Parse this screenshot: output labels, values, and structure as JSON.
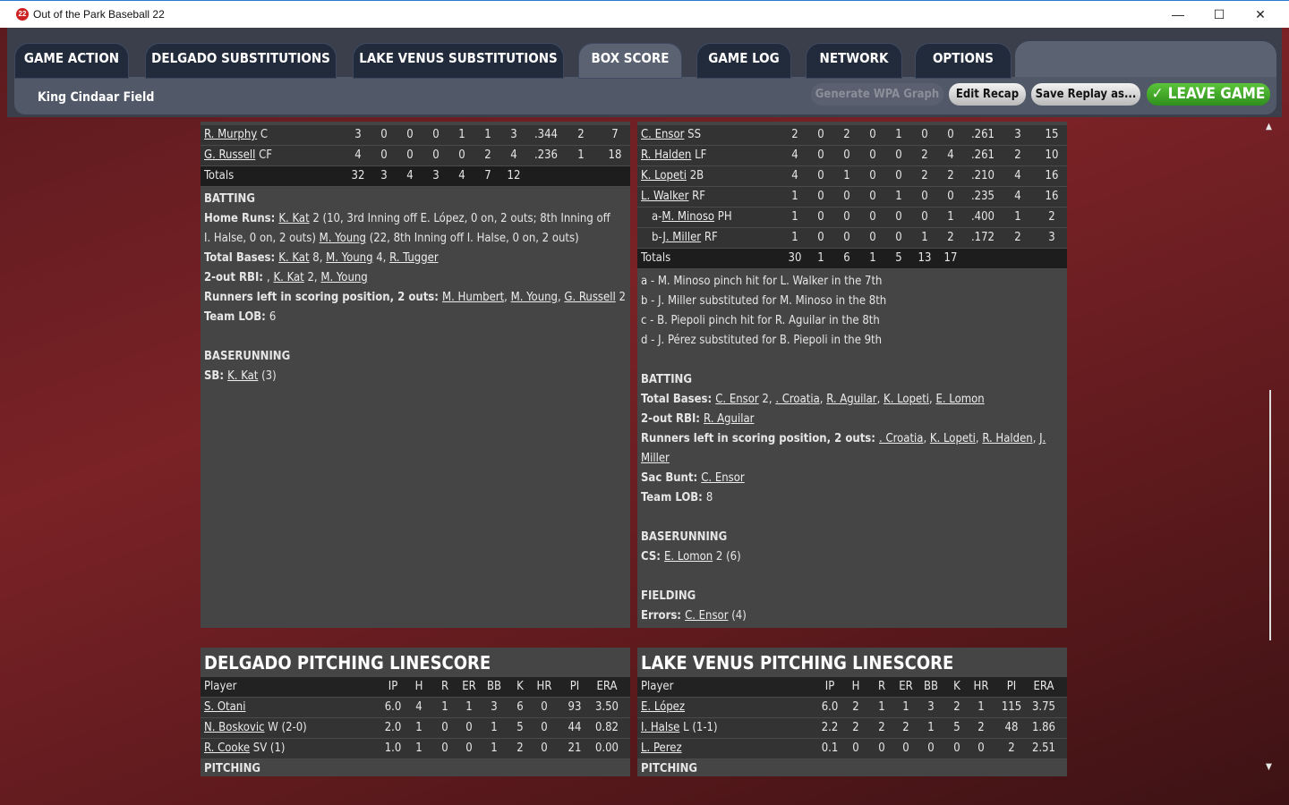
{
  "window": {
    "title": "Out of the Park Baseball 22",
    "logo": "22",
    "controls": [
      "minimize-icon",
      "maximize-icon",
      "close-icon"
    ]
  },
  "tabs": [
    {
      "label": "GAME ACTION"
    },
    {
      "label": "DELGADO SUBSTITUTIONS"
    },
    {
      "label": "LAKE VENUS SUBSTITUTIONS"
    },
    {
      "label": "BOX SCORE",
      "active": true
    },
    {
      "label": "GAME LOG"
    },
    {
      "label": "NETWORK"
    },
    {
      "label": "OPTIONS"
    }
  ],
  "field": "King Cindaar Field",
  "buttons": {
    "wpa": "Generate WPA Graph",
    "recap": "Edit Recap",
    "replay": "Save Replay as...",
    "leave": "LEAVE GAME",
    "leave_color": "#3fa82a"
  },
  "delgado_batting": {
    "rows": [
      {
        "name": "R. Murphy",
        "pos": "C",
        "vals": [
          "3",
          "0",
          "0",
          "0",
          "1",
          "1",
          "3",
          ".344",
          "2",
          "7"
        ]
      },
      {
        "name": "G. Russell",
        "pos": "CF",
        "vals": [
          "4",
          "0",
          "0",
          "0",
          "0",
          "2",
          "4",
          ".236",
          "1",
          "18"
        ]
      }
    ],
    "totals": {
      "label": "Totals",
      "vals": [
        "32",
        "3",
        "4",
        "3",
        "4",
        "7",
        "12"
      ]
    },
    "notes": [
      [
        {
          "t": "BATTING",
          "b": 1
        }
      ],
      [
        {
          "t": "Home Runs: ",
          "b": 1
        },
        {
          "t": "K. Kat",
          "l": 1
        },
        {
          "t": " 2 (10, 3rd Inning off E. López, 0 on, 2 outs; 8th Inning off"
        }
      ],
      [
        {
          "t": "I. Halse, 0 on, 2 outs) "
        },
        {
          "t": "M. Young",
          "l": 1
        },
        {
          "t": " (22, 8th Inning off I. Halse, 0 on, 2 outs)"
        }
      ],
      [
        {
          "t": "Total Bases: ",
          "b": 1
        },
        {
          "t": "K. Kat",
          "l": 1
        },
        {
          "t": " 8, "
        },
        {
          "t": "M. Young",
          "l": 1
        },
        {
          "t": " 4, "
        },
        {
          "t": "R. Tugger",
          "l": 1
        }
      ],
      [
        {
          "t": "2-out RBI: ",
          "b": 1
        },
        {
          "t": ", "
        },
        {
          "t": "K. Kat",
          "l": 1
        },
        {
          "t": " 2, "
        },
        {
          "t": "M. Young",
          "l": 1
        }
      ],
      [
        {
          "t": "Runners left in scoring position, 2 outs: ",
          "b": 1
        },
        {
          "t": "M. Humbert",
          "l": 1
        },
        {
          "t": ", "
        },
        {
          "t": "M. Young",
          "l": 1
        },
        {
          "t": ", "
        },
        {
          "t": "G. Russell",
          "l": 1
        },
        {
          "t": " 2"
        }
      ],
      [
        {
          "t": "Team LOB: ",
          "b": 1
        },
        {
          "t": "6"
        }
      ],
      [
        {
          "t": " "
        }
      ],
      [
        {
          "t": "BASERUNNING",
          "b": 1
        }
      ],
      [
        {
          "t": "SB: ",
          "b": 1
        },
        {
          "t": "K. Kat",
          "l": 1
        },
        {
          "t": " (3)"
        }
      ]
    ]
  },
  "lakevenus_batting": {
    "rows": [
      {
        "name": "C. Ensor",
        "pos": "SS",
        "vals": [
          "2",
          "0",
          "2",
          "0",
          "1",
          "0",
          "0",
          ".261",
          "3",
          "15"
        ]
      },
      {
        "name": "R. Halden",
        "pos": "LF",
        "vals": [
          "4",
          "0",
          "0",
          "0",
          "0",
          "2",
          "4",
          ".261",
          "2",
          "10"
        ]
      },
      {
        "name": "K. Lopeti",
        "pos": "2B",
        "vals": [
          "4",
          "0",
          "1",
          "0",
          "0",
          "2",
          "2",
          ".210",
          "4",
          "16"
        ]
      },
      {
        "name": "L. Walker",
        "pos": "RF",
        "vals": [
          "1",
          "0",
          "0",
          "0",
          "1",
          "0",
          "0",
          ".235",
          "4",
          "16"
        ]
      },
      {
        "prefix": "a-",
        "name": "M. Minoso",
        "pos": "PH",
        "vals": [
          "1",
          "0",
          "0",
          "0",
          "0",
          "0",
          "1",
          ".400",
          "1",
          "2"
        ]
      },
      {
        "prefix": "b-",
        "name": "J. Miller",
        "pos": "RF",
        "vals": [
          "1",
          "0",
          "0",
          "0",
          "0",
          "1",
          "2",
          ".172",
          "2",
          "3"
        ]
      }
    ],
    "totals": {
      "label": "Totals",
      "vals": [
        "30",
        "1",
        "6",
        "1",
        "5",
        "13",
        "17"
      ]
    },
    "notes": [
      [
        {
          "t": "a - M. Minoso pinch hit for L. Walker in the 7th"
        }
      ],
      [
        {
          "t": "b - J. Miller substituted for M. Minoso in the 8th"
        }
      ],
      [
        {
          "t": "c - B. Piepoli pinch hit for R. Aguilar in the 8th"
        }
      ],
      [
        {
          "t": "d - J. Pérez substituted for B. Piepoli in the 9th"
        }
      ],
      [
        {
          "t": " "
        }
      ],
      [
        {
          "t": "BATTING",
          "b": 1
        }
      ],
      [
        {
          "t": "Total Bases: ",
          "b": 1
        },
        {
          "t": "C. Ensor",
          "l": 1
        },
        {
          "t": " 2, "
        },
        {
          "t": ". Croatia",
          "l": 1
        },
        {
          "t": ", "
        },
        {
          "t": "R. Aguilar",
          "l": 1
        },
        {
          "t": ", "
        },
        {
          "t": "K. Lopeti",
          "l": 1
        },
        {
          "t": ", "
        },
        {
          "t": "E. Lomon",
          "l": 1
        }
      ],
      [
        {
          "t": "2-out RBI: ",
          "b": 1
        },
        {
          "t": "R. Aguilar",
          "l": 1
        }
      ],
      [
        {
          "t": "Runners left in scoring position, 2 outs: ",
          "b": 1
        },
        {
          "t": ". Croatia",
          "l": 1
        },
        {
          "t": ", "
        },
        {
          "t": "K. Lopeti",
          "l": 1
        },
        {
          "t": ", "
        },
        {
          "t": "R. Halden",
          "l": 1
        },
        {
          "t": ", "
        },
        {
          "t": "J.",
          "l": 1
        }
      ],
      [
        {
          "t": "Miller",
          "l": 1
        }
      ],
      [
        {
          "t": "Sac Bunt: ",
          "b": 1
        },
        {
          "t": "C. Ensor",
          "l": 1
        }
      ],
      [
        {
          "t": "Team LOB: ",
          "b": 1
        },
        {
          "t": "8"
        }
      ],
      [
        {
          "t": " "
        }
      ],
      [
        {
          "t": "BASERUNNING",
          "b": 1
        }
      ],
      [
        {
          "t": "CS: ",
          "b": 1
        },
        {
          "t": "E. Lomon",
          "l": 1
        },
        {
          "t": " 2 (6)"
        }
      ],
      [
        {
          "t": " "
        }
      ],
      [
        {
          "t": "FIELDING",
          "b": 1
        }
      ],
      [
        {
          "t": "Errors: ",
          "b": 1
        },
        {
          "t": "C. Ensor",
          "l": 1
        },
        {
          "t": " (4)"
        }
      ]
    ]
  },
  "pitching": [
    {
      "title": "DELGADO PITCHING LINESCORE",
      "headers": [
        "Player",
        "IP",
        "H",
        "R",
        "ER",
        "BB",
        "K",
        "HR",
        "PI",
        "ERA"
      ],
      "rows": [
        {
          "name": "S. Otani",
          "note": "",
          "vals": [
            "6.0",
            "4",
            "1",
            "1",
            "3",
            "6",
            "0",
            "93",
            "3.50"
          ]
        },
        {
          "name": "N. Boskovic",
          "note": " W (2-0)",
          "vals": [
            "2.0",
            "1",
            "0",
            "0",
            "1",
            "5",
            "0",
            "44",
            "0.82"
          ]
        },
        {
          "name": "R. Cooke",
          "note": " SV (1)",
          "vals": [
            "1.0",
            "1",
            "0",
            "0",
            "1",
            "2",
            "0",
            "21",
            "0.00"
          ]
        }
      ],
      "footer": "PITCHING"
    },
    {
      "title": "LAKE VENUS PITCHING LINESCORE",
      "headers": [
        "Player",
        "IP",
        "H",
        "R",
        "ER",
        "BB",
        "K",
        "HR",
        "PI",
        "ERA"
      ],
      "rows": [
        {
          "name": "E. López",
          "note": "",
          "vals": [
            "6.0",
            "2",
            "1",
            "1",
            "3",
            "2",
            "1",
            "115",
            "3.75"
          ]
        },
        {
          "name": "I. Halse",
          "note": " L (1-1)",
          "vals": [
            "2.2",
            "2",
            "2",
            "2",
            "1",
            "5",
            "2",
            "48",
            "1.86"
          ]
        },
        {
          "name": "L. Perez",
          "note": "",
          "vals": [
            "0.1",
            "0",
            "0",
            "0",
            "0",
            "0",
            "0",
            "2",
            "2.51"
          ]
        }
      ],
      "footer": "PITCHING"
    }
  ],
  "scrollbar": {
    "up": "▲",
    "down": "▼"
  }
}
